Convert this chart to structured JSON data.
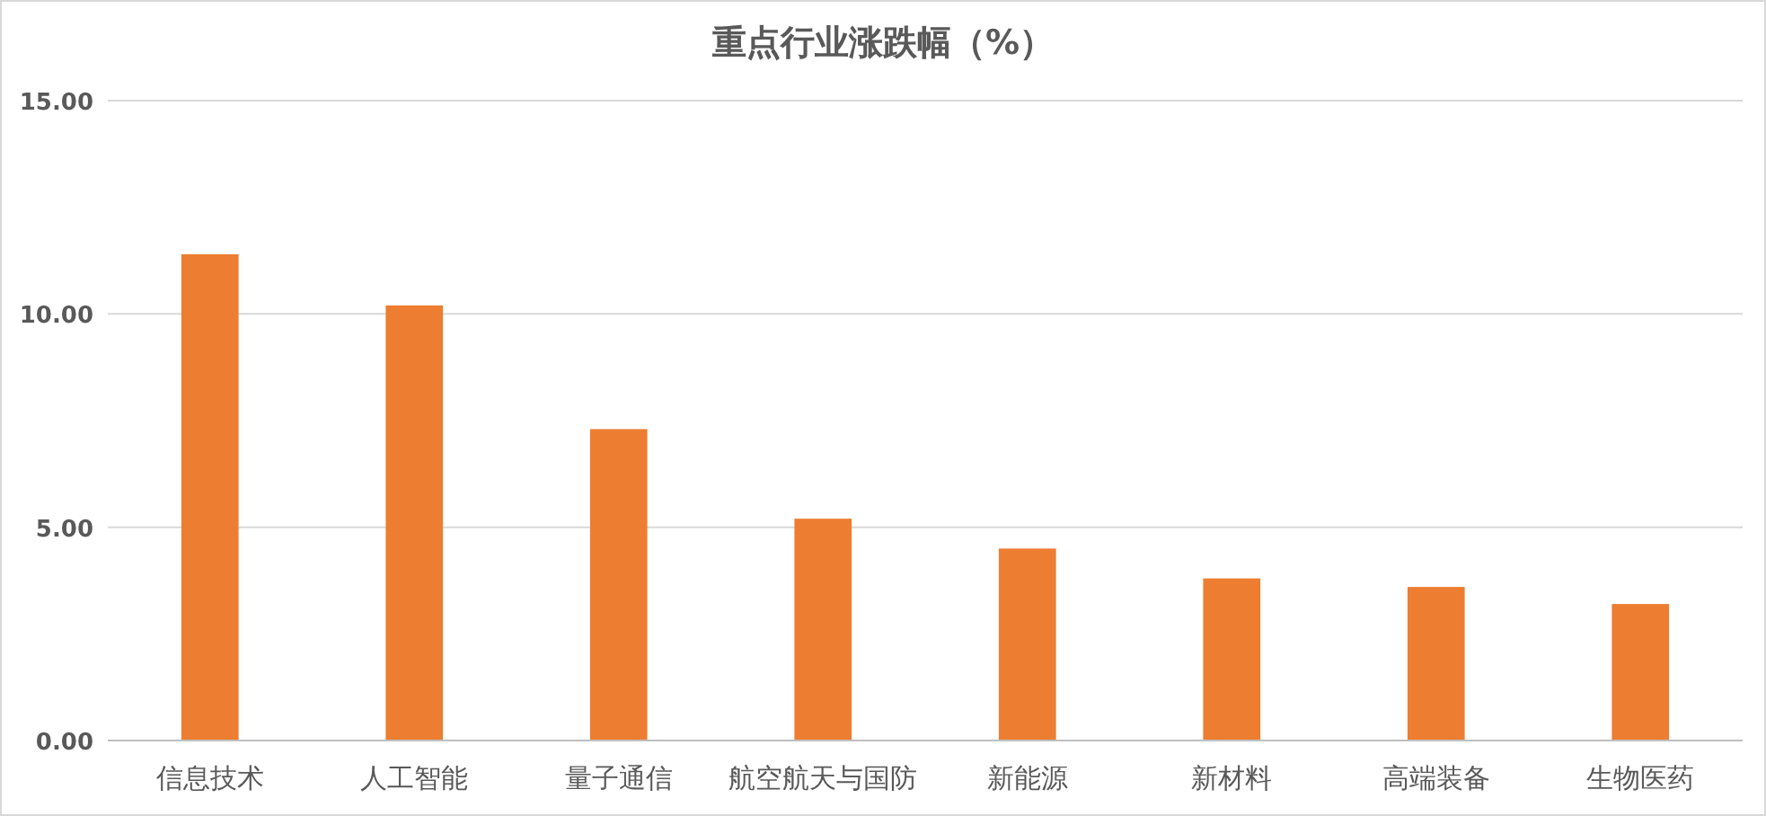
{
  "chart_data": {
    "type": "bar",
    "title": "重点行业涨跌幅（%）",
    "categories": [
      "信息技术",
      "人工智能",
      "量子通信",
      "航空航天与国防",
      "新能源",
      "新材料",
      "高端装备",
      "生物医药"
    ],
    "values": [
      11.4,
      10.2,
      7.3,
      5.2,
      4.5,
      3.8,
      3.6,
      3.2
    ],
    "color": "#ed7d31",
    "ylim": [
      0,
      15
    ],
    "yticks": [
      {
        "value": 0,
        "label": "0.00"
      },
      {
        "value": 5,
        "label": "5.00"
      },
      {
        "value": 10,
        "label": "10.00"
      },
      {
        "value": 15,
        "label": "15.00"
      }
    ],
    "grid": "y"
  }
}
